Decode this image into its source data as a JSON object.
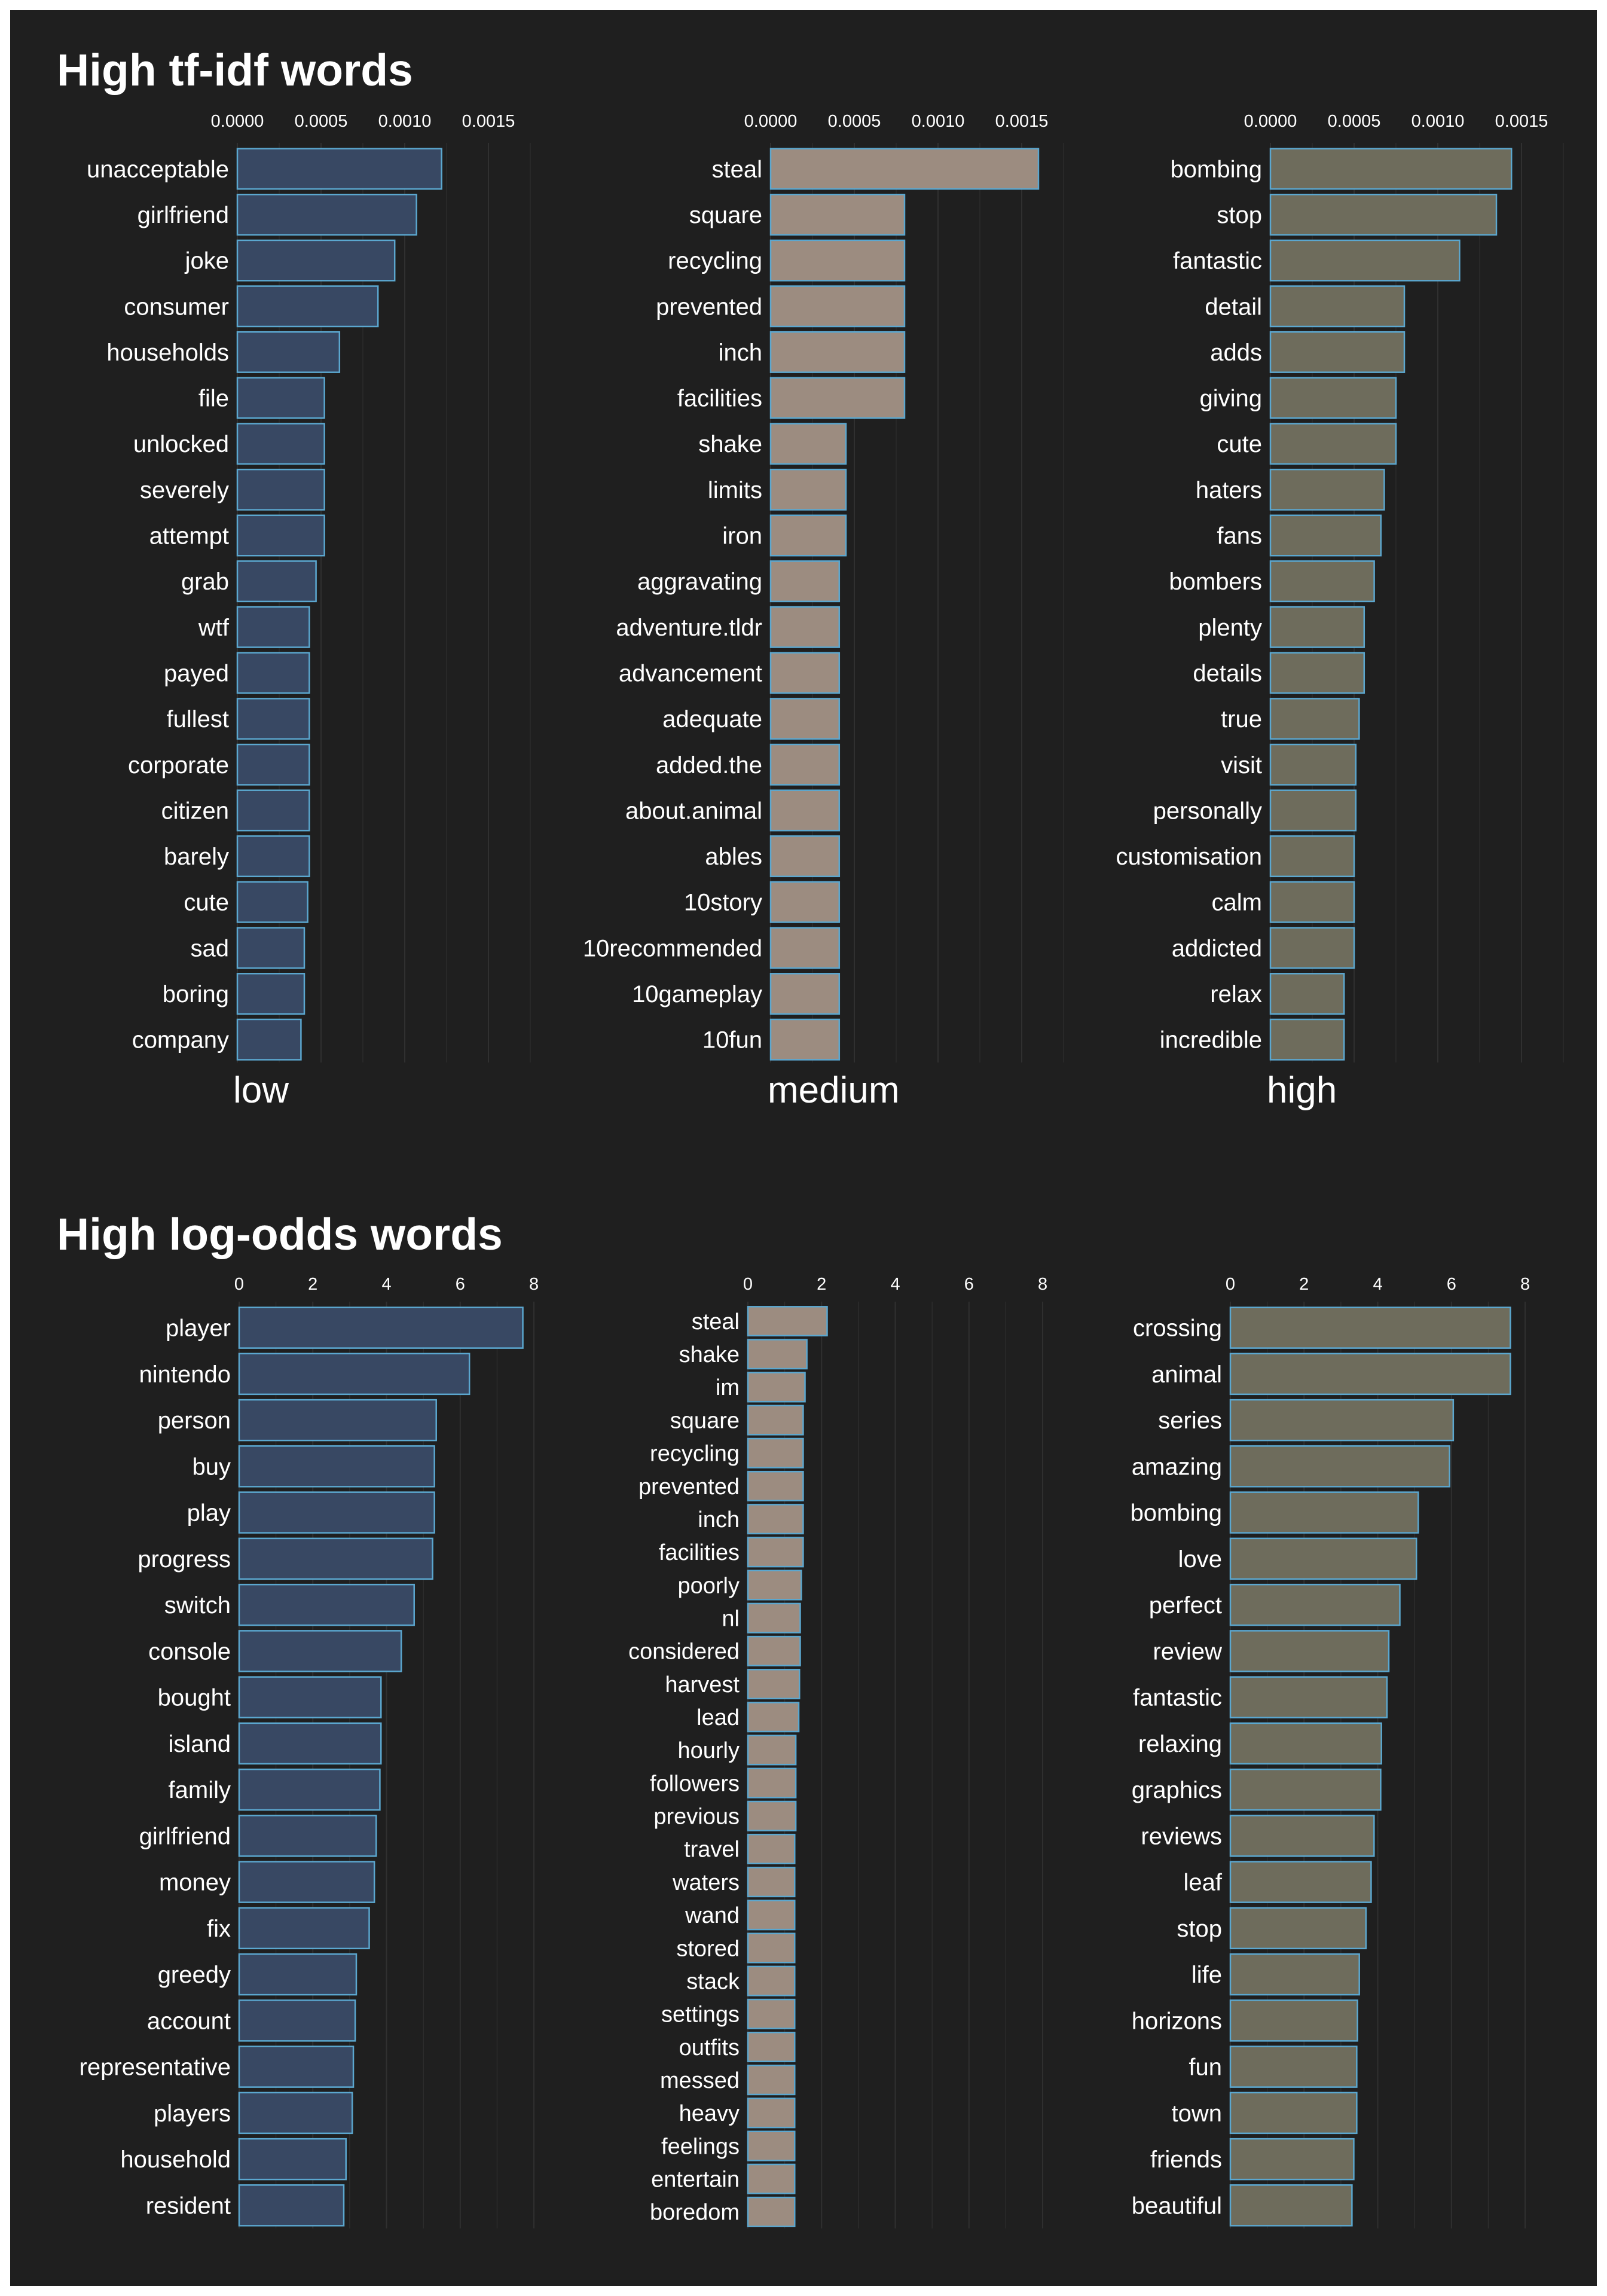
{
  "colors": {
    "background": "#1f1f1f",
    "grid": "#303030",
    "text": "#ffffff",
    "bar_outline": "#5ba7cf",
    "low": "#384863",
    "medium": "#9c8c80",
    "high": "#6e6c5c"
  },
  "sections": [
    {
      "title": "High tf-idf words"
    },
    {
      "title": "High log-odds words"
    }
  ],
  "chart_data": [
    {
      "type": "bar",
      "orientation": "horizontal",
      "title": "High tf-idf words",
      "xlim": [
        0,
        0.00175
      ],
      "ticks": [
        0,
        0.0005,
        0.001,
        0.0015
      ],
      "tick_labels": [
        "0.0000",
        "0.0005",
        "0.0010",
        "0.0015"
      ],
      "facets": [
        {
          "label": "low",
          "color_key": "low",
          "categories": [
            "unacceptable",
            "girlfriend",
            "joke",
            "consumer",
            "households",
            "file",
            "unlocked",
            "severely",
            "attempt",
            "grab",
            "wtf",
            "payed",
            "fullest",
            "corporate",
            "citizen",
            "barely",
            "cute",
            "sad",
            "boring",
            "company"
          ],
          "values": [
            0.00122,
            0.00107,
            0.00094,
            0.00084,
            0.00061,
            0.00052,
            0.00052,
            0.00052,
            0.00052,
            0.00047,
            0.00043,
            0.00043,
            0.00043,
            0.00043,
            0.00043,
            0.00043,
            0.00042,
            0.0004,
            0.0004,
            0.00038
          ]
        },
        {
          "label": "medium",
          "color_key": "medium",
          "categories": [
            "steal",
            "square",
            "recycling",
            "prevented",
            "inch",
            "facilities",
            "shake",
            "limits",
            "iron",
            "aggravating",
            "adventure.tldr",
            "advancement",
            "adequate",
            "added.the",
            "about.animal",
            "ables",
            "10story",
            "10recommended",
            "10gameplay",
            "10fun"
          ],
          "values": [
            0.0016,
            0.0008,
            0.0008,
            0.0008,
            0.0008,
            0.0008,
            0.00045,
            0.00045,
            0.00045,
            0.00041,
            0.00041,
            0.00041,
            0.00041,
            0.00041,
            0.00041,
            0.00041,
            0.00041,
            0.00041,
            0.00041,
            0.00041
          ]
        },
        {
          "label": "high",
          "color_key": "high",
          "categories": [
            "bombing",
            "stop",
            "fantastic",
            "detail",
            "adds",
            "giving",
            "cute",
            "haters",
            "fans",
            "bombers",
            "plenty",
            "details",
            "true",
            "visit",
            "personally",
            "customisation",
            "calm",
            "addicted",
            "relax",
            "incredible"
          ],
          "values": [
            0.00144,
            0.00135,
            0.00113,
            0.0008,
            0.0008,
            0.00075,
            0.00075,
            0.00068,
            0.00066,
            0.00062,
            0.00056,
            0.00056,
            0.00053,
            0.00051,
            0.00051,
            0.0005,
            0.0005,
            0.0005,
            0.00044,
            0.00044
          ]
        }
      ]
    },
    {
      "type": "bar",
      "orientation": "horizontal",
      "title": "High log-odds words",
      "xlim": [
        0,
        8.6
      ],
      "ticks": [
        0,
        2,
        4,
        6,
        8
      ],
      "tick_labels": [
        "0",
        "2",
        "4",
        "6",
        "8"
      ],
      "facets": [
        {
          "label": "",
          "color_key": "low",
          "categories": [
            "player",
            "nintendo",
            "person",
            "buy",
            "play",
            "progress",
            "switch",
            "console",
            "bought",
            "island",
            "family",
            "girlfriend",
            "money",
            "fix",
            "greedy",
            "account",
            "representative",
            "players",
            "household",
            "resident"
          ],
          "values": [
            7.7,
            6.25,
            5.35,
            5.3,
            5.3,
            5.25,
            4.75,
            4.4,
            3.85,
            3.85,
            3.82,
            3.72,
            3.67,
            3.53,
            3.18,
            3.15,
            3.1,
            3.07,
            2.9,
            2.84
          ]
        },
        {
          "label": "",
          "color_key": "medium",
          "categories": [
            "steal",
            "shake",
            "im",
            "square",
            "recycling",
            "prevented",
            "inch",
            "facilities",
            "poorly",
            "nl",
            "considered",
            "harvest",
            "lead",
            "hourly",
            "followers",
            "previous",
            "travel",
            "waters",
            "wand",
            "stored",
            "stack",
            "settings",
            "outfits",
            "messed",
            "heavy",
            "feelings",
            "entertain",
            "boredom"
          ],
          "values": [
            2.15,
            1.6,
            1.55,
            1.5,
            1.5,
            1.5,
            1.5,
            1.5,
            1.45,
            1.42,
            1.42,
            1.4,
            1.38,
            1.3,
            1.3,
            1.3,
            1.27,
            1.27,
            1.27,
            1.27,
            1.27,
            1.27,
            1.27,
            1.27,
            1.27,
            1.27,
            1.27,
            1.27
          ]
        },
        {
          "label": "",
          "color_key": "high",
          "categories": [
            "crossing",
            "animal",
            "series",
            "amazing",
            "bombing",
            "love",
            "perfect",
            "review",
            "fantastic",
            "relaxing",
            "graphics",
            "reviews",
            "leaf",
            "stop",
            "life",
            "horizons",
            "fun",
            "town",
            "friends",
            "beautiful"
          ],
          "values": [
            7.6,
            7.6,
            6.05,
            5.95,
            5.1,
            5.05,
            4.6,
            4.3,
            4.25,
            4.1,
            4.08,
            3.9,
            3.82,
            3.68,
            3.5,
            3.45,
            3.43,
            3.43,
            3.35,
            3.3
          ]
        }
      ]
    }
  ]
}
